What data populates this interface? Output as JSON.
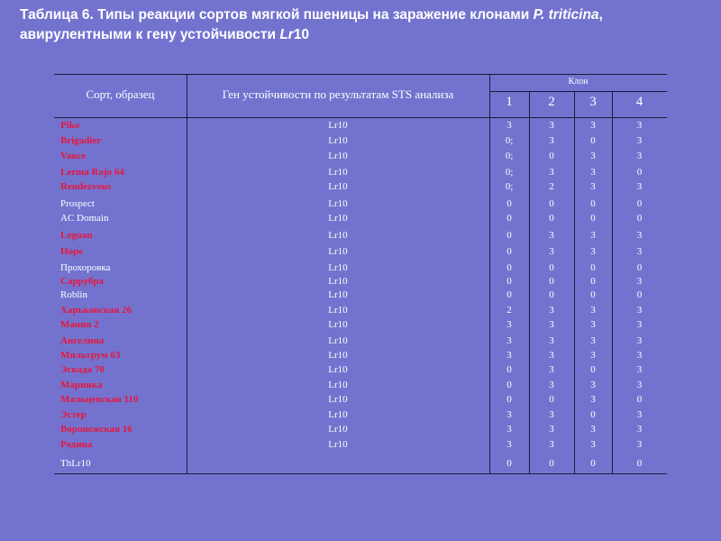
{
  "title": {
    "line1_pre": "Таблица 6. Типы реакции сортов мягкой пшеницы на заражение клонами ",
    "line1_italic": "P. triticina",
    "line1_post": ",",
    "line2_pre": "авирулентными к гену устойчивости ",
    "line2_italic": "Lr",
    "line2_post": "10"
  },
  "colors": {
    "background": "#7373cf",
    "resistant_highlight": "#e8163c",
    "text": "#ffffff"
  },
  "table": {
    "headers": {
      "variety": "Сорт, образец",
      "gene": "Ген устойчивости по результатам STS  анализа",
      "clone": "Клон",
      "clones": [
        "1",
        "2",
        "3",
        "4"
      ]
    },
    "rows": [
      {
        "name": "Piko",
        "red": true,
        "gene": "Lr10",
        "values": [
          "3",
          "3",
          "3",
          "3"
        ]
      },
      {
        "name": "Brigadier",
        "red": true,
        "gene": "Lr10",
        "values": [
          "0;",
          "3",
          "0",
          "3"
        ]
      },
      {
        "name": "Vance",
        "red": true,
        "gene": "Lr10",
        "values": [
          "0;",
          "0",
          "3",
          "3"
        ]
      },
      {
        "name": "Lerma Rojo 64",
        "red": true,
        "gene": "Lr10",
        "values": [
          "0;",
          "3",
          "3",
          "0"
        ]
      },
      {
        "name": "Rendezvous",
        "red": true,
        "gene": "Lr10",
        "values": [
          "0;",
          "2",
          "3",
          "3"
        ]
      },
      {
        "name": "Prospect",
        "red": false,
        "gene": "Lr10",
        "values": [
          "0",
          "0",
          "0",
          "0"
        ]
      },
      {
        "name": "AC Domain",
        "red": false,
        "gene": "Lr10",
        "values": [
          "0",
          "0",
          "0",
          "0"
        ]
      },
      {
        "name": "Leguan",
        "red": true,
        "gene": "Lr10",
        "values": [
          "0",
          "3",
          "3",
          "3"
        ]
      },
      {
        "name": "Hope",
        "red": true,
        "gene": "Lr10",
        "values": [
          "0",
          "3",
          "3",
          "3"
        ]
      },
      {
        "name": "Прохоровка",
        "red": false,
        "gene": "Lr10",
        "values": [
          "0",
          "0",
          "0",
          "0"
        ]
      },
      {
        "name": "Саррубра",
        "red": true,
        "gene": "Lr10",
        "values": [
          "0",
          "0",
          "0",
          "3"
        ]
      },
      {
        "name": "Roblin",
        "red": false,
        "gene": "Lr10",
        "values": [
          "0",
          "0",
          "0",
          "0"
        ]
      },
      {
        "name": "Харьковская 26",
        "red": true,
        "gene": "Lr10",
        "values": [
          "2",
          "3",
          "3",
          "3"
        ]
      },
      {
        "name": "Мания 2",
        "red": true,
        "gene": "Lr10",
        "values": [
          "3",
          "3",
          "3",
          "3"
        ]
      },
      {
        "name": "Ангелина",
        "red": true,
        "gene": "Lr10",
        "values": [
          "3",
          "3",
          "3",
          "3"
        ]
      },
      {
        "name": "Мильтрум 63",
        "red": true,
        "gene": "Lr10",
        "values": [
          "3",
          "3",
          "3",
          "3"
        ]
      },
      {
        "name": "Эскада 70",
        "red": true,
        "gene": "Lr10",
        "values": [
          "0",
          "3",
          "0",
          "3"
        ]
      },
      {
        "name": "Маринка",
        "red": true,
        "gene": "Lr10",
        "values": [
          "0",
          "3",
          "3",
          "3"
        ]
      },
      {
        "name": "Мальцевская 110",
        "red": true,
        "gene": "Lr10",
        "values": [
          "0",
          "0",
          "3",
          "0"
        ]
      },
      {
        "name": "Эстер",
        "red": true,
        "gene": "Lr10",
        "values": [
          "3",
          "3",
          "0",
          "3"
        ]
      },
      {
        "name": "Воронежская 16",
        "red": true,
        "gene": "Lr10",
        "values": [
          "3",
          "3",
          "3",
          "3"
        ]
      },
      {
        "name": "Родина",
        "red": true,
        "gene": "Lr10",
        "values": [
          "3",
          "3",
          "3",
          "3"
        ]
      },
      {
        "name": "ThLr10",
        "red": false,
        "gene": "",
        "values": [
          "0",
          "0",
          "0",
          "0"
        ]
      }
    ]
  }
}
